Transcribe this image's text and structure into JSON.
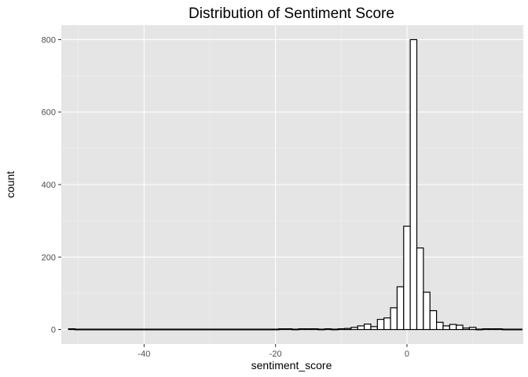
{
  "chart_data": {
    "type": "bar",
    "title": "Distribution of Sentiment Score",
    "xlabel": "sentiment_score",
    "ylabel": "count",
    "xlim": [
      -52.6,
      17.7
    ],
    "ylim": [
      -40,
      840
    ],
    "x_ticks": [
      -40,
      -20,
      0
    ],
    "x_tick_labels": [
      "-40",
      "-20",
      "0"
    ],
    "y_ticks": [
      0,
      200,
      400,
      600,
      800
    ],
    "y_tick_labels": [
      "0",
      "200",
      "400",
      "600",
      "800"
    ],
    "grid": true,
    "legend": "none",
    "bin_width": 1,
    "bin_start": -51.5,
    "values": [
      2,
      1,
      1,
      1,
      1,
      1,
      1,
      1,
      1,
      1,
      1,
      1,
      1,
      1,
      1,
      1,
      1,
      1,
      1,
      1,
      1,
      1,
      1,
      1,
      1,
      1,
      1,
      1,
      1,
      1,
      1,
      1,
      2,
      2,
      1,
      2,
      2,
      2,
      1,
      2,
      1,
      2,
      3,
      6,
      10,
      15,
      8,
      28,
      32,
      60,
      118,
      285,
      800,
      225,
      103,
      52,
      20,
      10,
      14,
      12,
      4,
      6,
      1,
      2,
      2,
      2,
      1,
      1,
      1
    ],
    "colors": {
      "panel": "#e5e5e5",
      "grid": "#ffffff",
      "bar_fill": "#ffffff",
      "bar_outline": "#000000"
    }
  }
}
